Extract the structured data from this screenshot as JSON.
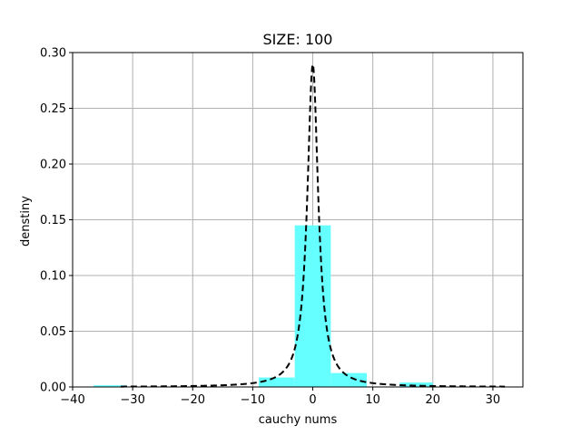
{
  "chart_data": {
    "type": "bar",
    "title": "SIZE: 100",
    "xlabel": "cauchy nums",
    "ylabel": "denstiny",
    "xlim": [
      -40,
      35
    ],
    "ylim": [
      0,
      0.3
    ],
    "grid": true,
    "x_ticks": [
      -40,
      -30,
      -20,
      -10,
      0,
      10,
      20,
      30
    ],
    "y_ticks": [
      0.0,
      0.05,
      0.1,
      0.15,
      0.2,
      0.25,
      0.3
    ],
    "x_tick_labels": [
      "−40",
      "−30",
      "−20",
      "−10",
      "0",
      "10",
      "20",
      "30"
    ],
    "y_tick_labels": [
      "0.00",
      "0.05",
      "0.10",
      "0.15",
      "0.20",
      "0.25",
      "0.30"
    ],
    "histogram": {
      "color": "#66ffff",
      "bins": [
        {
          "x0": -36.5,
          "x1": -31.0,
          "value": 0.0015
        },
        {
          "x0": -31.0,
          "x1": -25.5,
          "value": 0.0
        },
        {
          "x0": -25.5,
          "x1": -20.0,
          "value": 0.0
        },
        {
          "x0": -20.0,
          "x1": -14.5,
          "value": 0.0
        },
        {
          "x0": -14.5,
          "x1": -9.0,
          "value": 0.0
        },
        {
          "x0": -9.0,
          "x1": -3.0,
          "value": 0.0085
        },
        {
          "x0": -3.0,
          "x1": 3.0,
          "value": 0.145
        },
        {
          "x0": 3.0,
          "x1": 9.0,
          "value": 0.0125
        },
        {
          "x0": 9.0,
          "x1": 14.5,
          "value": 0.0
        },
        {
          "x0": 14.5,
          "x1": 20.0,
          "value": 0.004
        }
      ]
    },
    "density_curve": {
      "style": "dashed",
      "color": "#000000",
      "x_range": [
        -32,
        32
      ],
      "x0": 0,
      "gamma": 1.1
    }
  }
}
